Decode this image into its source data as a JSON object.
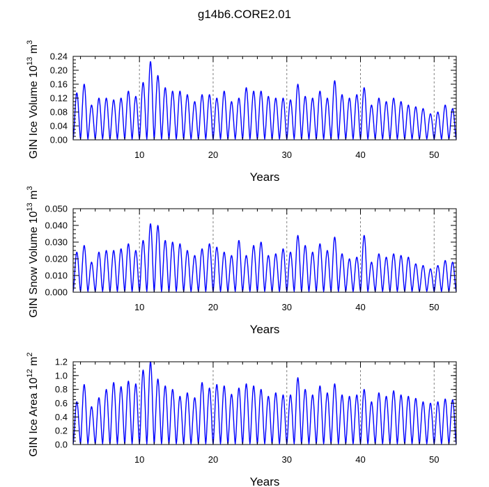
{
  "title": "g14b6.CORE2.01",
  "colors": {
    "series": "#0000ff",
    "axis": "#000000",
    "grid": "#808080"
  },
  "chart_data": [
    {
      "type": "line",
      "ylabel": "GIN Ice Volume 10",
      "ylabel_exp": "13",
      "ylabel_unit": " m",
      "ylabel_unit_exp": "3",
      "xlabel": "Years",
      "xlim": [
        1,
        53
      ],
      "ylim": [
        0,
        0.24
      ],
      "xticks": [
        10,
        20,
        30,
        40,
        50
      ],
      "xtick_labels": [
        "10",
        "20",
        "30",
        "40",
        "50"
      ],
      "yticks": [
        0,
        0.04,
        0.08,
        0.12,
        0.16,
        0.2,
        0.24
      ],
      "ytick_labels": [
        "0.00",
        "0.04",
        "0.08",
        "0.12",
        "0.16",
        "0.20",
        "0.24"
      ],
      "grid": "dashed vertical at x ticks",
      "series": [
        {
          "annual_max": [
            0.135,
            0.16,
            0.1,
            0.12,
            0.12,
            0.115,
            0.12,
            0.14,
            0.125,
            0.165,
            0.225,
            0.185,
            0.15,
            0.14,
            0.14,
            0.13,
            0.11,
            0.13,
            0.13,
            0.12,
            0.14,
            0.11,
            0.12,
            0.15,
            0.14,
            0.14,
            0.125,
            0.12,
            0.12,
            0.115,
            0.16,
            0.125,
            0.12,
            0.14,
            0.12,
            0.17,
            0.13,
            0.12,
            0.13,
            0.15,
            0.1,
            0.12,
            0.11,
            0.12,
            0.11,
            0.1,
            0.095,
            0.09,
            0.075,
            0.08,
            0.1,
            0.09
          ]
        }
      ]
    },
    {
      "type": "line",
      "ylabel": "GIN Snow Volume 10",
      "ylabel_exp": "13",
      "ylabel_unit": " m",
      "ylabel_unit_exp": "3",
      "xlabel": "Years",
      "xlim": [
        1,
        53
      ],
      "ylim": [
        0,
        0.05
      ],
      "xticks": [
        10,
        20,
        30,
        40,
        50
      ],
      "xtick_labels": [
        "10",
        "20",
        "30",
        "40",
        "50"
      ],
      "yticks": [
        0,
        0.01,
        0.02,
        0.03,
        0.04,
        0.05
      ],
      "ytick_labels": [
        "0.000",
        "0.010",
        "0.020",
        "0.030",
        "0.040",
        "0.050"
      ],
      "grid": "dashed vertical at x ticks",
      "series": [
        {
          "annual_max": [
            0.024,
            0.028,
            0.018,
            0.024,
            0.025,
            0.025,
            0.026,
            0.029,
            0.025,
            0.031,
            0.041,
            0.04,
            0.031,
            0.03,
            0.029,
            0.025,
            0.022,
            0.026,
            0.029,
            0.027,
            0.024,
            0.022,
            0.031,
            0.022,
            0.028,
            0.03,
            0.022,
            0.023,
            0.026,
            0.024,
            0.034,
            0.028,
            0.024,
            0.029,
            0.025,
            0.033,
            0.023,
            0.02,
            0.021,
            0.034,
            0.018,
            0.023,
            0.021,
            0.023,
            0.022,
            0.021,
            0.017,
            0.016,
            0.014,
            0.016,
            0.019,
            0.018
          ]
        }
      ]
    },
    {
      "type": "line",
      "ylabel": "GIN Ice Area 10",
      "ylabel_exp": "12",
      "ylabel_unit": " m",
      "ylabel_unit_exp": "2",
      "xlabel": "Years",
      "xlim": [
        1,
        53
      ],
      "ylim": [
        0,
        1.2
      ],
      "xticks": [
        10,
        20,
        30,
        40,
        50
      ],
      "xtick_labels": [
        "10",
        "20",
        "30",
        "40",
        "50"
      ],
      "yticks": [
        0,
        0.2,
        0.4,
        0.6,
        0.8,
        1.0,
        1.2
      ],
      "ytick_labels": [
        "0.0",
        "0.2",
        "0.4",
        "0.6",
        "0.8",
        "1.0",
        "1.2"
      ],
      "grid": "dashed vertical at x ticks",
      "series": [
        {
          "annual_max": [
            0.62,
            0.87,
            0.55,
            0.68,
            0.8,
            0.9,
            0.84,
            0.92,
            0.88,
            1.08,
            1.2,
            0.95,
            0.85,
            0.8,
            0.7,
            0.75,
            0.68,
            0.9,
            0.82,
            0.87,
            0.85,
            0.73,
            0.82,
            0.88,
            0.85,
            0.8,
            0.7,
            0.75,
            0.72,
            0.72,
            0.97,
            0.8,
            0.72,
            0.85,
            0.75,
            0.88,
            0.72,
            0.7,
            0.72,
            0.8,
            0.62,
            0.75,
            0.7,
            0.78,
            0.72,
            0.7,
            0.67,
            0.62,
            0.6,
            0.62,
            0.66,
            0.65
          ]
        }
      ]
    }
  ]
}
